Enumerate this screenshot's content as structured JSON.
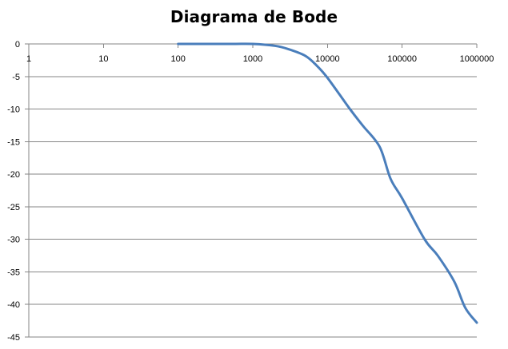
{
  "chart_data": {
    "type": "line",
    "title": "Diagrama de Bode",
    "xlabel": "",
    "ylabel": "",
    "x_scale": "log",
    "xlim": [
      1,
      1000000
    ],
    "ylim": [
      -45,
      0
    ],
    "grid": "horizontal",
    "x_tick_labels": [
      "1",
      "10",
      "100",
      "1000",
      "10000",
      "100000",
      "1000000"
    ],
    "y_tick_labels": [
      "0",
      "-5",
      "-10",
      "-15",
      "-20",
      "-25",
      "-30",
      "-35",
      "-40",
      "-45"
    ],
    "colors": {
      "line": "#4a7ebb",
      "grid": "#868686",
      "axis": "#868686"
    },
    "series": [
      {
        "x": [
          100,
          500,
          1000,
          2000,
          3000,
          5000,
          7000,
          10000,
          20000,
          30000,
          50000,
          70000,
          100000,
          200000,
          300000,
          500000,
          700000,
          1000000
        ],
        "y": [
          0,
          0,
          0,
          -0.3,
          -0.8,
          -1.8,
          -3.2,
          -5.2,
          -10.0,
          -12.6,
          -15.8,
          -20.7,
          -23.7,
          -30.0,
          -32.5,
          -36.5,
          -40.5,
          -42.8
        ]
      }
    ]
  }
}
